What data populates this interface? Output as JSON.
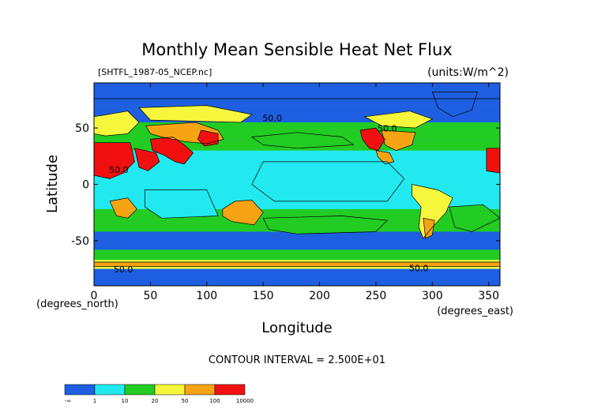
{
  "chart_data": {
    "type": "heatmap",
    "title": "Monthly Mean Sensible Heat Net Flux",
    "source_label": "[SHTFL_1987-05_NCEP.nc]",
    "units_label": "(units:W/m^2)",
    "xlabel": "Longitude",
    "ylabel": "Latitude",
    "x_unit_label": "(degrees_east)",
    "y_unit_label": "(degrees_north)",
    "xlim": [
      0,
      360
    ],
    "ylim": [
      -90,
      90
    ],
    "x_ticks": [
      0,
      50,
      100,
      150,
      200,
      250,
      300,
      350
    ],
    "y_ticks": [
      50,
      0,
      -50
    ],
    "contour_interval_label": "CONTOUR INTERVAL = 2.500E+01",
    "contour_labels": [
      {
        "text": "50.0",
        "lon": 158,
        "lat": 56
      },
      {
        "text": "50.0",
        "lon": 260,
        "lat": 47
      },
      {
        "text": "50.0",
        "lon": 22,
        "lat": 10
      },
      {
        "text": "50.0",
        "lon": 26,
        "lat": -78
      },
      {
        "text": "50.0",
        "lon": 288,
        "lat": -77
      }
    ],
    "colorbar": {
      "colors": [
        "#1d5fe0",
        "#22e9f0",
        "#22cc22",
        "#f6f63c",
        "#f6a414",
        "#f01010"
      ],
      "boundaries": [
        null,
        1,
        10,
        20,
        50,
        100,
        10000
      ],
      "tick_labels": [
        "-∞",
        "1",
        "10",
        "20",
        "50",
        "100",
        "10000"
      ]
    },
    "bands": [
      {
        "lat": [
          -90,
          -75
        ],
        "class": 0
      },
      {
        "lat": [
          -75,
          -67
        ],
        "class": 3
      },
      {
        "lat": [
          -67,
          -58
        ],
        "class": 2
      },
      {
        "lat": [
          -58,
          -42
        ],
        "class": 0
      },
      {
        "lat": [
          -42,
          -22
        ],
        "class": 2
      },
      {
        "lat": [
          -22,
          -12
        ],
        "class": 1
      },
      {
        "lat": [
          -12,
          8
        ],
        "class": 1
      },
      {
        "lat": [
          8,
          30
        ],
        "class": 1
      },
      {
        "lat": [
          30,
          40
        ],
        "class": 2
      },
      {
        "lat": [
          40,
          55
        ],
        "class": 2
      },
      {
        "lat": [
          55,
          70
        ],
        "class": 0
      },
      {
        "lat": [
          70,
          90
        ],
        "class": 0
      }
    ],
    "regions": [
      {
        "name": "africa-north",
        "class": 5,
        "poly": [
          [
            0,
            37
          ],
          [
            32,
            37
          ],
          [
            34,
            30
          ],
          [
            36,
            20
          ],
          [
            26,
            10
          ],
          [
            14,
            5
          ],
          [
            0,
            8
          ]
        ]
      },
      {
        "name": "arabia",
        "class": 5,
        "poly": [
          [
            36,
            32
          ],
          [
            55,
            28
          ],
          [
            58,
            20
          ],
          [
            48,
            12
          ],
          [
            40,
            15
          ]
        ]
      },
      {
        "name": "iran-india",
        "class": 5,
        "poly": [
          [
            50,
            40
          ],
          [
            70,
            42
          ],
          [
            80,
            35
          ],
          [
            88,
            28
          ],
          [
            80,
            18
          ],
          [
            72,
            20
          ],
          [
            62,
            26
          ],
          [
            52,
            30
          ]
        ]
      },
      {
        "name": "central-asia",
        "class": 4,
        "poly": [
          [
            46,
            52
          ],
          [
            90,
            55
          ],
          [
            110,
            48
          ],
          [
            115,
            40
          ],
          [
            100,
            36
          ],
          [
            80,
            38
          ],
          [
            60,
            42
          ],
          [
            50,
            45
          ]
        ]
      },
      {
        "name": "china",
        "class": 5,
        "poly": [
          [
            95,
            48
          ],
          [
            110,
            45
          ],
          [
            110,
            36
          ],
          [
            98,
            34
          ],
          [
            92,
            40
          ]
        ]
      },
      {
        "name": "siberia",
        "class": 3,
        "poly": [
          [
            40,
            68
          ],
          [
            100,
            70
          ],
          [
            140,
            62
          ],
          [
            130,
            55
          ],
          [
            90,
            56
          ],
          [
            50,
            57
          ]
        ]
      },
      {
        "name": "africa-south",
        "class": 4,
        "poly": [
          [
            14,
            -15
          ],
          [
            30,
            -12
          ],
          [
            38,
            -22
          ],
          [
            30,
            -30
          ],
          [
            20,
            -28
          ]
        ]
      },
      {
        "name": "australia",
        "class": 4,
        "poly": [
          [
            114,
            -22
          ],
          [
            125,
            -15
          ],
          [
            140,
            -14
          ],
          [
            150,
            -25
          ],
          [
            142,
            -36
          ],
          [
            122,
            -33
          ],
          [
            114,
            -28
          ]
        ]
      },
      {
        "name": "us-west",
        "class": 5,
        "poly": [
          [
            236,
            48
          ],
          [
            250,
            50
          ],
          [
            258,
            40
          ],
          [
            252,
            30
          ],
          [
            244,
            32
          ],
          [
            238,
            40
          ]
        ]
      },
      {
        "name": "us-east",
        "class": 4,
        "poly": [
          [
            255,
            48
          ],
          [
            285,
            46
          ],
          [
            282,
            35
          ],
          [
            268,
            30
          ],
          [
            258,
            35
          ]
        ]
      },
      {
        "name": "canada",
        "class": 3,
        "poly": [
          [
            240,
            60
          ],
          [
            280,
            65
          ],
          [
            300,
            58
          ],
          [
            285,
            50
          ],
          [
            255,
            52
          ]
        ]
      },
      {
        "name": "mexico",
        "class": 4,
        "poly": [
          [
            250,
            30
          ],
          [
            262,
            28
          ],
          [
            266,
            20
          ],
          [
            258,
            18
          ],
          [
            252,
            24
          ]
        ]
      },
      {
        "name": "south-america",
        "class": 3,
        "poly": [
          [
            282,
            0
          ],
          [
            305,
            -5
          ],
          [
            318,
            -12
          ],
          [
            312,
            -25
          ],
          [
            300,
            -38
          ],
          [
            292,
            -48
          ],
          [
            288,
            -38
          ],
          [
            290,
            -20
          ],
          [
            282,
            -10
          ]
        ]
      },
      {
        "name": "patagonia",
        "class": 4,
        "poly": [
          [
            292,
            -30
          ],
          [
            302,
            -32
          ],
          [
            300,
            -45
          ],
          [
            294,
            -48
          ]
        ]
      },
      {
        "name": "europe",
        "class": 3,
        "poly": [
          [
            0,
            60
          ],
          [
            30,
            65
          ],
          [
            40,
            55
          ],
          [
            30,
            45
          ],
          [
            10,
            43
          ],
          [
            0,
            45
          ]
        ]
      },
      {
        "name": "greenland",
        "class": 0,
        "poly": [
          [
            300,
            82
          ],
          [
            340,
            82
          ],
          [
            335,
            66
          ],
          [
            318,
            60
          ],
          [
            305,
            68
          ]
        ]
      },
      {
        "name": "west-africa-edge",
        "class": 5,
        "poly": [
          [
            348,
            32
          ],
          [
            360,
            32
          ],
          [
            360,
            10
          ],
          [
            348,
            12
          ]
        ]
      },
      {
        "name": "south-atlantic-green",
        "class": 2,
        "poly": [
          [
            315,
            -20
          ],
          [
            345,
            -18
          ],
          [
            360,
            -30
          ],
          [
            335,
            -42
          ],
          [
            320,
            -38
          ]
        ]
      },
      {
        "name": "n-pacific-green",
        "class": 2,
        "poly": [
          [
            140,
            42
          ],
          [
            180,
            46
          ],
          [
            220,
            42
          ],
          [
            230,
            35
          ],
          [
            180,
            32
          ],
          [
            150,
            35
          ]
        ]
      },
      {
        "name": "s-pacific-green",
        "class": 2,
        "poly": [
          [
            150,
            -30
          ],
          [
            220,
            -28
          ],
          [
            260,
            -32
          ],
          [
            250,
            -42
          ],
          [
            180,
            -44
          ],
          [
            155,
            -40
          ]
        ]
      },
      {
        "name": "indian-ocean-cyan",
        "class": 1,
        "poly": [
          [
            45,
            -5
          ],
          [
            100,
            -5
          ],
          [
            110,
            -28
          ],
          [
            60,
            -30
          ],
          [
            45,
            -20
          ]
        ]
      },
      {
        "name": "eq-pacific-cyan",
        "class": 1,
        "poly": [
          [
            150,
            20
          ],
          [
            260,
            20
          ],
          [
            275,
            5
          ],
          [
            260,
            -15
          ],
          [
            160,
            -15
          ],
          [
            140,
            0
          ]
        ]
      },
      {
        "name": "antarctic-orange",
        "class": 4,
        "poly": [
          [
            0,
            -69
          ],
          [
            360,
            -69
          ],
          [
            360,
            -73
          ],
          [
            0,
            -73
          ]
        ]
      },
      {
        "name": "arctic-ocean-blue",
        "class": 0,
        "poly": [
          [
            0,
            90
          ],
          [
            360,
            90
          ],
          [
            360,
            76
          ],
          [
            0,
            76
          ]
        ]
      }
    ]
  }
}
